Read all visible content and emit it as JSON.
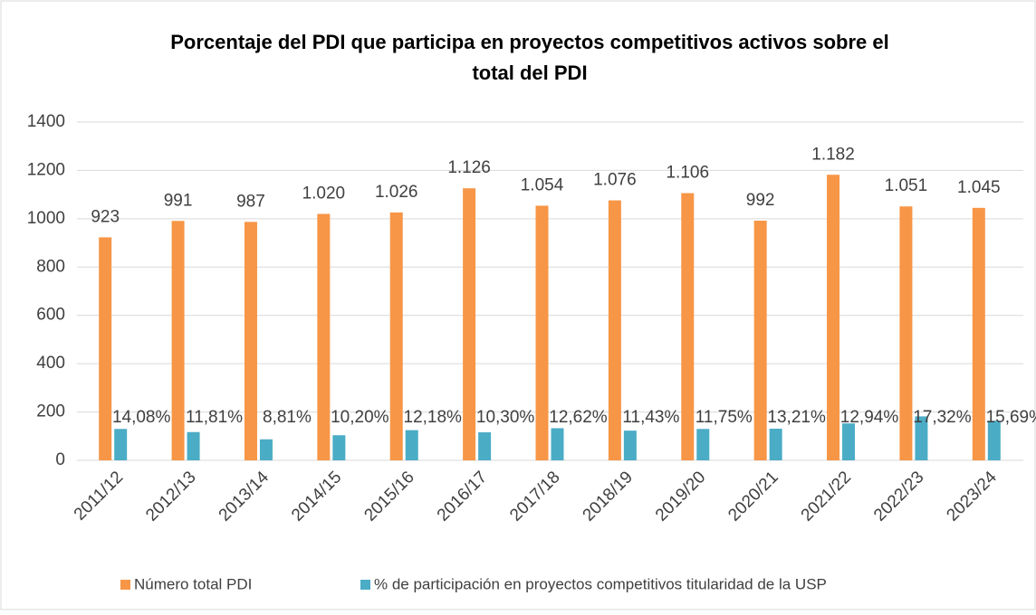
{
  "chart_data": {
    "type": "bar",
    "title": "Porcentaje del PDI que participa en proyectos competitivos activos sobre el total del PDI",
    "categories": [
      "2011/12",
      "2012/13",
      "2013/14",
      "2014/15",
      "2015/16",
      "2016/17",
      "2017/18",
      "2018/19",
      "2019/20",
      "2020/21",
      "2021/22",
      "2022/23",
      "2023/24"
    ],
    "series": [
      {
        "name": "Número total PDI",
        "color": "#f79646",
        "values": [
          923,
          991,
          987,
          1020,
          1026,
          1126,
          1054,
          1076,
          1106,
          992,
          1182,
          1051,
          1045
        ],
        "value_labels": [
          "923",
          "991",
          "987",
          "1.020",
          "1.026",
          "1.126",
          "1.054",
          "1.076",
          "1.106",
          "992",
          "1.182",
          "1.051",
          "1.045"
        ]
      },
      {
        "name": "% de participación en proyectos competitivos titularidad de la USP",
        "color": "#4bacc6",
        "values": [
          130,
          117,
          87,
          104,
          125,
          116,
          133,
          123,
          130,
          131,
          153,
          182,
          164
        ],
        "percent_labels": [
          "14,08%",
          "11,81%",
          "8,81%",
          "10,20%",
          "12,18%",
          "10,30%",
          "12,62%",
          "11,43%",
          "11,75%",
          "13,21%",
          "12,94%",
          "17,32%",
          "15,69%"
        ]
      }
    ],
    "ylim": [
      0,
      1400
    ],
    "yticks": [
      0,
      200,
      400,
      600,
      800,
      1000,
      1200,
      1400
    ],
    "grid": true,
    "legend": "bottom"
  }
}
